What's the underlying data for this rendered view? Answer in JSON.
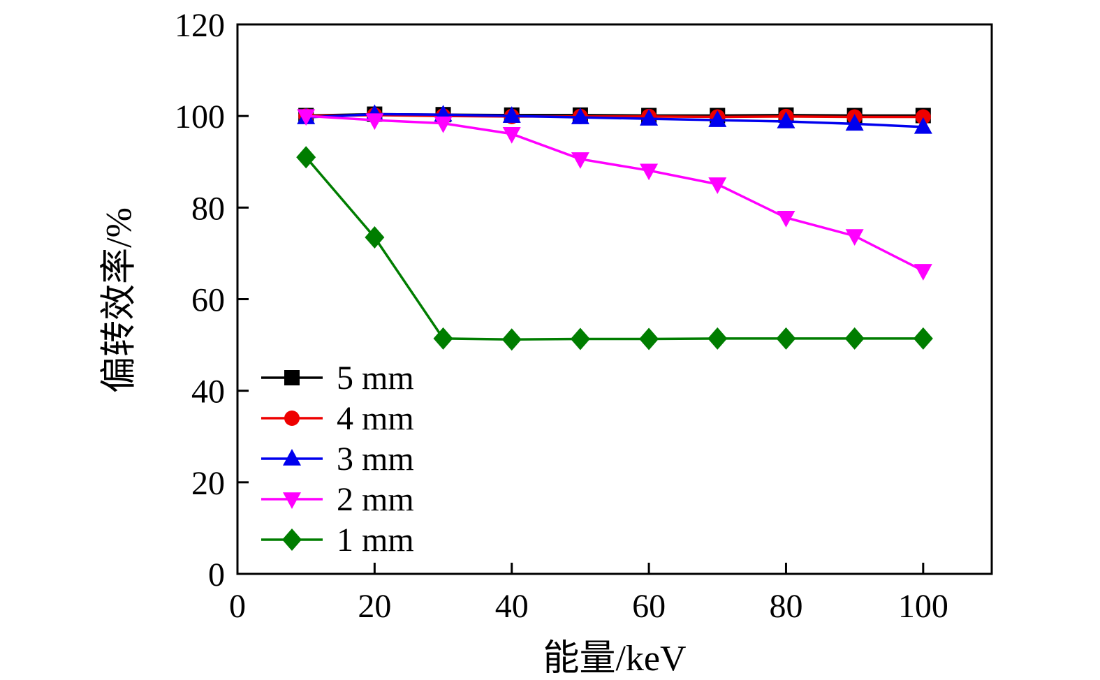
{
  "chart_data": {
    "type": "line",
    "title": "",
    "xlabel": "能量/keV",
    "ylabel": "偏转效率/%",
    "xlim": [
      0,
      110
    ],
    "ylim": [
      0,
      120
    ],
    "xticks": [
      0,
      20,
      40,
      60,
      80,
      100
    ],
    "yticks": [
      0,
      20,
      40,
      60,
      80,
      100,
      120
    ],
    "grid": false,
    "legend_position": "lower-left",
    "x": [
      10,
      20,
      30,
      40,
      50,
      60,
      70,
      80,
      90,
      100
    ],
    "series": [
      {
        "name": "5 mm",
        "color": "#000000",
        "marker": "square",
        "values": [
          100.1,
          100.4,
          100.3,
          100.2,
          100.2,
          100.1,
          100.1,
          100.2,
          100.1,
          100.1
        ]
      },
      {
        "name": "4 mm",
        "color": "#ee0000",
        "marker": "circle",
        "values": [
          100.0,
          100.2,
          100.0,
          99.9,
          99.9,
          99.9,
          99.8,
          99.9,
          99.8,
          99.8
        ]
      },
      {
        "name": "3 mm",
        "color": "#0000ee",
        "marker": "triangle-up",
        "values": [
          99.7,
          100.4,
          100.3,
          100.0,
          99.7,
          99.4,
          99.1,
          98.8,
          98.3,
          97.6
        ]
      },
      {
        "name": "2 mm",
        "color": "#ff00ff",
        "marker": "triangle-down",
        "values": [
          100.0,
          99.1,
          98.4,
          96.1,
          90.6,
          88.1,
          85.1,
          77.8,
          73.8,
          66.2
        ]
      },
      {
        "name": "1 mm",
        "color": "#007d00",
        "marker": "diamond",
        "values": [
          91.0,
          73.5,
          51.4,
          51.2,
          51.3,
          51.3,
          51.4,
          51.4,
          51.4,
          51.4
        ]
      }
    ]
  }
}
